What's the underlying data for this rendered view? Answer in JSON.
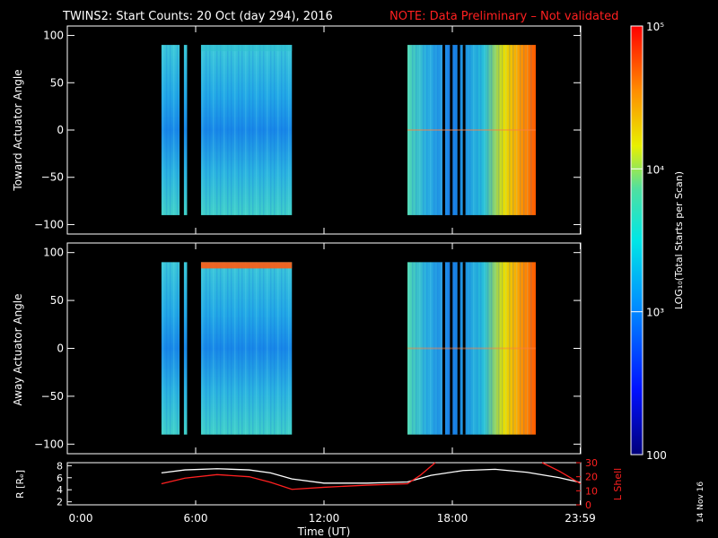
{
  "header": {
    "title": "TWINS2: Start Counts: 20 Oct (day 294), 2016",
    "note": "NOTE: Data Preliminary – Not validated",
    "note_color": "#ff2020"
  },
  "stamp": "14 Nov 16",
  "chart_data": [
    {
      "type": "heatmap",
      "ylabel": "Toward Actuator Angle",
      "ylim": [
        -110,
        110
      ],
      "yticks": [
        "100",
        "50",
        "0",
        "−50",
        "−100"
      ],
      "data_coverage_hours": [
        [
          4.4,
          5.25
        ],
        [
          5.45,
          5.6
        ],
        [
          6.25,
          10.5
        ],
        [
          15.9,
          21.9
        ]
      ],
      "dropout_hours": [
        17.6,
        17.95,
        18.3,
        18.55
      ]
    },
    {
      "type": "heatmap",
      "ylabel": "Away Actuator Angle",
      "ylim": [
        -110,
        110
      ],
      "yticks": [
        "100",
        "50",
        "0",
        "−50",
        "−100"
      ],
      "data_coverage_hours": [
        [
          4.4,
          5.25
        ],
        [
          5.45,
          5.6
        ],
        [
          6.25,
          10.5
        ],
        [
          15.9,
          21.9
        ]
      ],
      "dropout_hours": [
        17.6,
        17.95,
        18.3,
        18.55
      ]
    },
    {
      "type": "line",
      "xlabel": "Time (UT)",
      "xticks": [
        "0:00",
        "6:00",
        "12:00",
        "18:00",
        "23:59"
      ],
      "ylabel_left": "R [Rₑ]",
      "ylabel_right": "L Shell",
      "yticks_left": [
        "8",
        "6",
        "4",
        "2"
      ],
      "yticks_right": [
        "30",
        "20",
        "10",
        "0"
      ],
      "ylim_left": [
        1.5,
        8.5
      ],
      "ylim_right": [
        0,
        30
      ],
      "series": [
        {
          "color": "#ffffff",
          "x": [
            4.4,
            5.5,
            7,
            8.5,
            9.5,
            10.5,
            12,
            14,
            15.9,
            17,
            18.5,
            20,
            21.5,
            23,
            24
          ],
          "y": [
            6.8,
            7.3,
            7.5,
            7.3,
            6.8,
            5.8,
            5.1,
            5.1,
            5.3,
            6.4,
            7.2,
            7.4,
            6.9,
            6.0,
            5.2
          ]
        },
        {
          "color": "#ff2020",
          "axis": "right",
          "x": [
            4.4,
            5.5,
            7,
            8.5,
            9.5,
            10.5,
            12,
            14,
            15.9,
            16.5,
            17.2
          ],
          "y": [
            15,
            19,
            21.5,
            20,
            16,
            11,
            12.5,
            14,
            15,
            21,
            30
          ]
        },
        {
          "color": "#ff2020",
          "axis": "right",
          "x": [
            22.2,
            23,
            24
          ],
          "y": [
            30,
            24,
            15
          ]
        }
      ]
    }
  ],
  "colorbar": {
    "label": "LOG₁₀(Total Starts per Scan)",
    "ticks": [
      "10⁵",
      "10⁴",
      "10³",
      "100"
    ],
    "min_log": 2,
    "max_log": 5
  }
}
